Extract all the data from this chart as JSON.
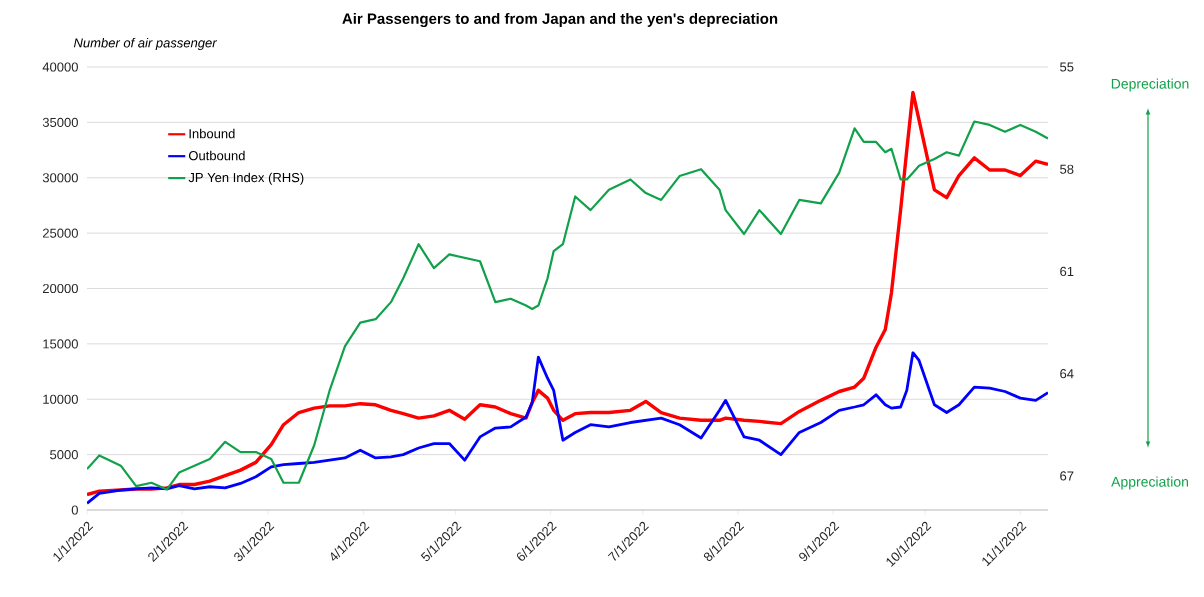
{
  "chart_data": {
    "type": "line",
    "title": "Air Passengers to and from Japan and the yen's depreciation",
    "ylabel": "Number of air passenger",
    "annotations": [
      "Depreciation",
      "Appreciation"
    ],
    "x": [
      "2022-01-01",
      "2022-01-05",
      "2022-01-12",
      "2022-01-17",
      "2022-01-22",
      "2022-01-27",
      "2022-01-31",
      "2022-02-05",
      "2022-02-10",
      "2022-02-15",
      "2022-02-20",
      "2022-02-25",
      "2022-03-02",
      "2022-03-06",
      "2022-03-11",
      "2022-03-16",
      "2022-03-21",
      "2022-03-26",
      "2022-03-31",
      "2022-04-05",
      "2022-04-10",
      "2022-04-14",
      "2022-04-19",
      "2022-04-24",
      "2022-04-29",
      "2022-05-04",
      "2022-05-09",
      "2022-05-14",
      "2022-05-19",
      "2022-05-24",
      "2022-05-26",
      "2022-05-28",
      "2022-05-31",
      "2022-06-02",
      "2022-06-05",
      "2022-06-09",
      "2022-06-14",
      "2022-06-20",
      "2022-06-27",
      "2022-07-02",
      "2022-07-07",
      "2022-07-13",
      "2022-07-20",
      "2022-07-26",
      "2022-07-28",
      "2022-08-03",
      "2022-08-08",
      "2022-08-15",
      "2022-08-21",
      "2022-08-28",
      "2022-09-03",
      "2022-09-08",
      "2022-09-11",
      "2022-09-15",
      "2022-09-18",
      "2022-09-20",
      "2022-09-23",
      "2022-09-25",
      "2022-09-27",
      "2022-09-29",
      "2022-10-04",
      "2022-10-08",
      "2022-10-12",
      "2022-10-17",
      "2022-10-22",
      "2022-10-27",
      "2022-11-01",
      "2022-11-06",
      "2022-11-10"
    ],
    "series": [
      {
        "name": "Inbound",
        "color": "#ff0000",
        "values": [
          1400,
          1700,
          1800,
          1900,
          1900,
          2000,
          2300,
          2300,
          2600,
          3100,
          3600,
          4300,
          5900,
          7700,
          8800,
          9200,
          9400,
          9400,
          9600,
          9500,
          9000,
          8700,
          8300,
          8500,
          9000,
          8200,
          9500,
          9300,
          8700,
          8300,
          9700,
          10800,
          10100,
          9000,
          8100,
          8700,
          8800,
          8800,
          9000,
          9800,
          8800,
          8300,
          8100,
          8100,
          8300,
          8100,
          8000,
          7800,
          8900,
          9900,
          10700,
          11100,
          11900,
          14700,
          16300,
          19600,
          27100,
          32500,
          37700,
          35200,
          28900,
          28200,
          30200,
          31800,
          30700,
          30700,
          30200,
          31500,
          31200
        ]
      },
      {
        "name": "Outbound",
        "color": "#0000ff",
        "values": [
          600,
          1500,
          1800,
          1900,
          2000,
          1900,
          2200,
          1900,
          2100,
          2000,
          2400,
          3000,
          3900,
          4100,
          4200,
          4300,
          4500,
          4700,
          5400,
          4700,
          4800,
          5000,
          5600,
          6000,
          6000,
          4500,
          6600,
          7400,
          7500,
          8400,
          9700,
          13800,
          11900,
          10800,
          6300,
          7000,
          7700,
          7500,
          7900,
          8100,
          8300,
          7700,
          6500,
          9000,
          9900,
          6600,
          6300,
          5000,
          7000,
          7900,
          9000,
          9300,
          9500,
          10400,
          9500,
          9200,
          9300,
          10800,
          14200,
          13500,
          9500,
          8800,
          9500,
          11100,
          11000,
          10700,
          10100,
          9900,
          10600
        ]
      },
      {
        "name": "JP Yen Index (RHS)",
        "color": "#12a14b",
        "axis": "y2",
        "values": [
          66.8,
          66.4,
          66.7,
          67.3,
          67.2,
          67.4,
          66.9,
          66.7,
          66.5,
          66.0,
          66.3,
          66.3,
          66.5,
          67.2,
          67.2,
          66.1,
          64.5,
          63.2,
          62.5,
          62.4,
          61.9,
          61.2,
          60.2,
          60.9,
          60.5,
          60.6,
          60.7,
          61.9,
          61.8,
          62.0,
          62.1,
          62.0,
          61.2,
          60.4,
          60.2,
          58.8,
          59.2,
          58.6,
          58.3,
          58.7,
          58.9,
          58.2,
          58.0,
          58.6,
          59.2,
          59.9,
          59.2,
          59.9,
          58.9,
          59.0,
          58.1,
          56.8,
          57.2,
          57.2,
          57.5,
          57.4,
          58.3,
          58.3,
          58.1,
          57.9,
          57.7,
          57.5,
          57.6,
          56.6,
          56.7,
          56.9,
          56.7,
          56.9,
          57.1
        ]
      }
    ],
    "xlim": [
      "2022-01-01",
      "2022-11-10"
    ],
    "xticks": [
      {
        "value": "2022-01-01",
        "label": "1/1/2022"
      },
      {
        "value": "2022-02-01",
        "label": "2/1/2022"
      },
      {
        "value": "2022-03-01",
        "label": "3/1/2022"
      },
      {
        "value": "2022-04-01",
        "label": "4/1/2022"
      },
      {
        "value": "2022-05-01",
        "label": "5/1/2022"
      },
      {
        "value": "2022-06-01",
        "label": "6/1/2022"
      },
      {
        "value": "2022-07-01",
        "label": "7/1/2022"
      },
      {
        "value": "2022-08-01",
        "label": "8/1/2022"
      },
      {
        "value": "2022-09-01",
        "label": "9/1/2022"
      },
      {
        "value": "2022-10-01",
        "label": "10/1/2022"
      },
      {
        "value": "2022-11-01",
        "label": "11/1/2022"
      }
    ],
    "ylim": [
      0,
      40000
    ],
    "yticks": [
      0,
      5000,
      10000,
      15000,
      20000,
      25000,
      30000,
      35000,
      40000
    ],
    "y2lim": [
      68,
      55
    ],
    "y2ticks": [
      55,
      58,
      61,
      64,
      67
    ],
    "grid": "y",
    "legend": "top left"
  }
}
